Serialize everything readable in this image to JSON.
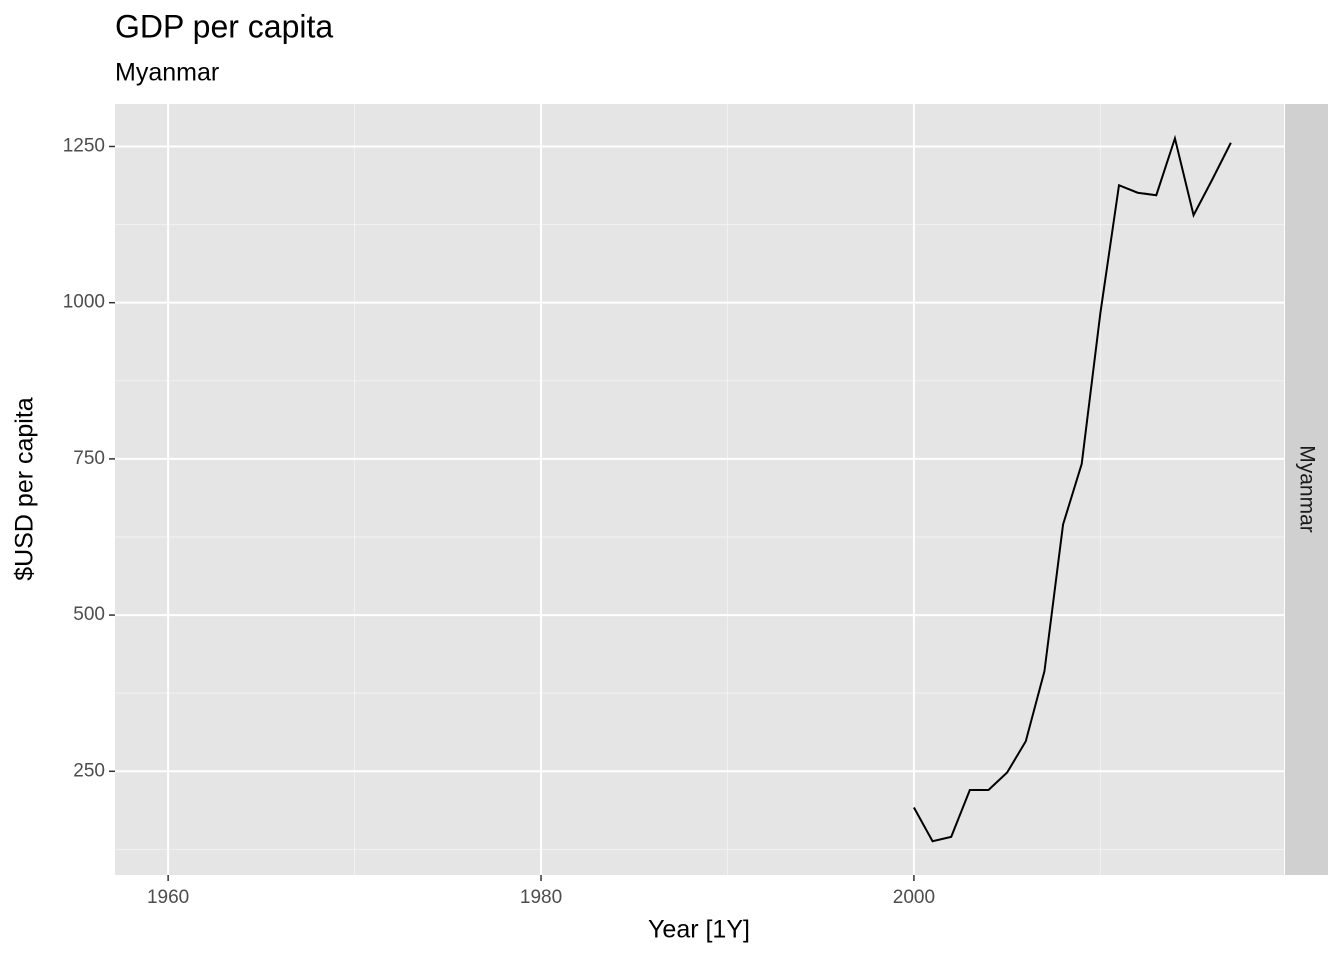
{
  "chart_data": {
    "type": "line",
    "title": "GDP per capita",
    "subtitle": "Myanmar",
    "x_label": "Year [1Y]",
    "y_label": "$USD per capita",
    "facet_label": "Myanmar",
    "x": [
      2000,
      2001,
      2002,
      2003,
      2004,
      2005,
      2006,
      2007,
      2008,
      2009,
      2010,
      2011,
      2012,
      2013,
      2014,
      2015,
      2016,
      2017
    ],
    "series": [
      {
        "color": "#000000",
        "values": [
          192,
          138,
          145,
          220,
          220,
          248,
          298,
          410,
          645,
          742,
          983,
          1188,
          1176,
          1172,
          1263,
          1140,
          1197,
          1256
        ]
      }
    ],
    "xlim": [
      1957.15,
      2019.85
    ],
    "xticks": [
      1960,
      1980,
      2000
    ],
    "ylim": [
      84,
      1318
    ],
    "yticks": [
      250,
      500,
      750,
      1000,
      1250
    ],
    "grid": true
  }
}
